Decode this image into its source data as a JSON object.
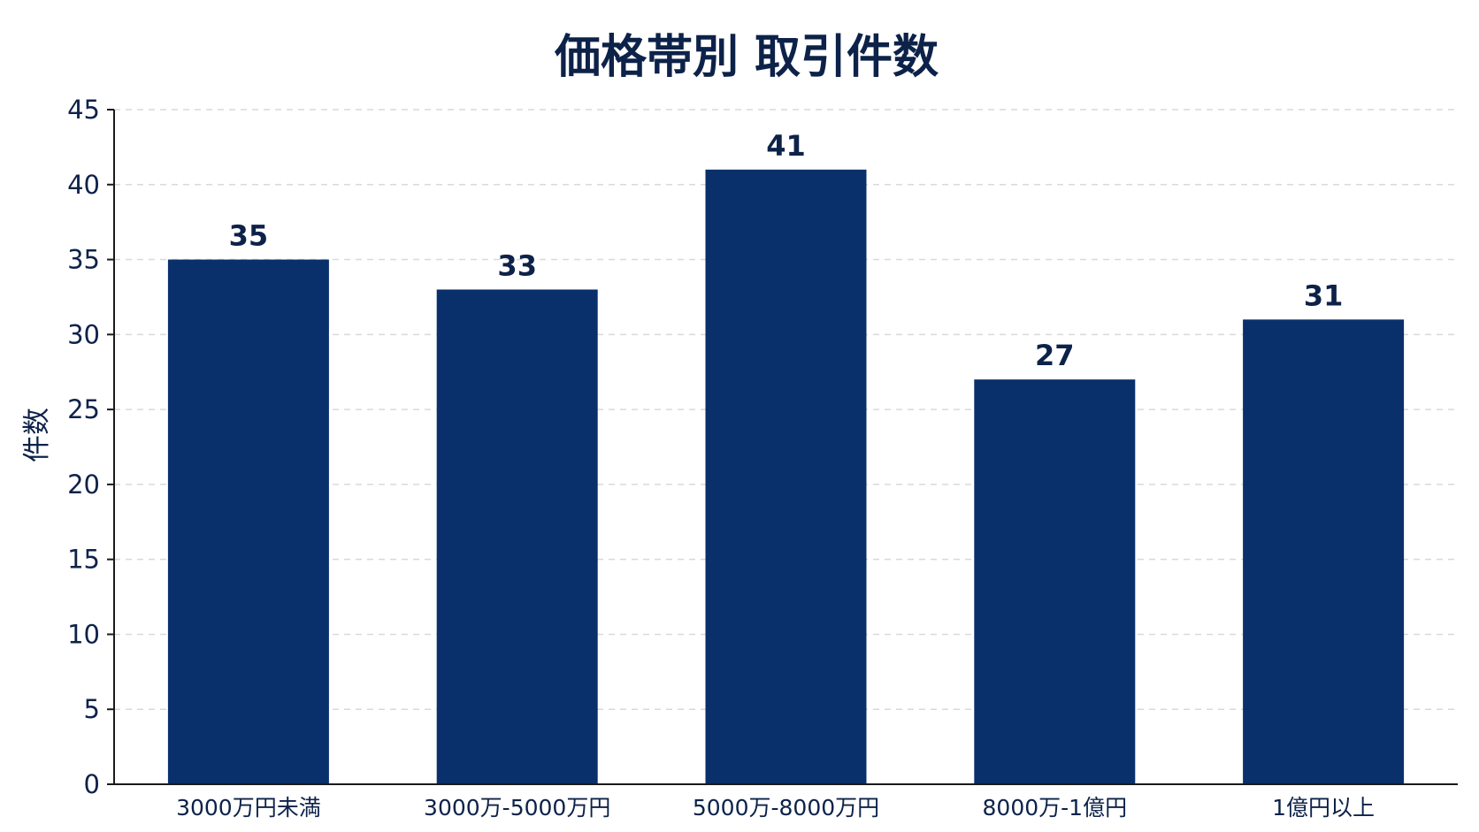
{
  "chart_data": {
    "type": "bar",
    "title": "価格帯別 取引件数",
    "xlabel": "",
    "ylabel": "件数",
    "categories": [
      "3000万円未満",
      "3000万-5000万円",
      "5000万-8000万円",
      "8000万-1億円",
      "1億円以上"
    ],
    "values": [
      35,
      33,
      41,
      27,
      31
    ],
    "ylim": [
      0,
      45
    ],
    "yticks": [
      "0",
      "5",
      "10",
      "15",
      "20",
      "25",
      "30",
      "35",
      "40",
      "45"
    ],
    "grid": true,
    "legend": "none"
  },
  "colors": {
    "bar": "#0a306b",
    "text": "#0d2249",
    "grid": "#d9d9d9",
    "axis": "#1a1a1a"
  }
}
